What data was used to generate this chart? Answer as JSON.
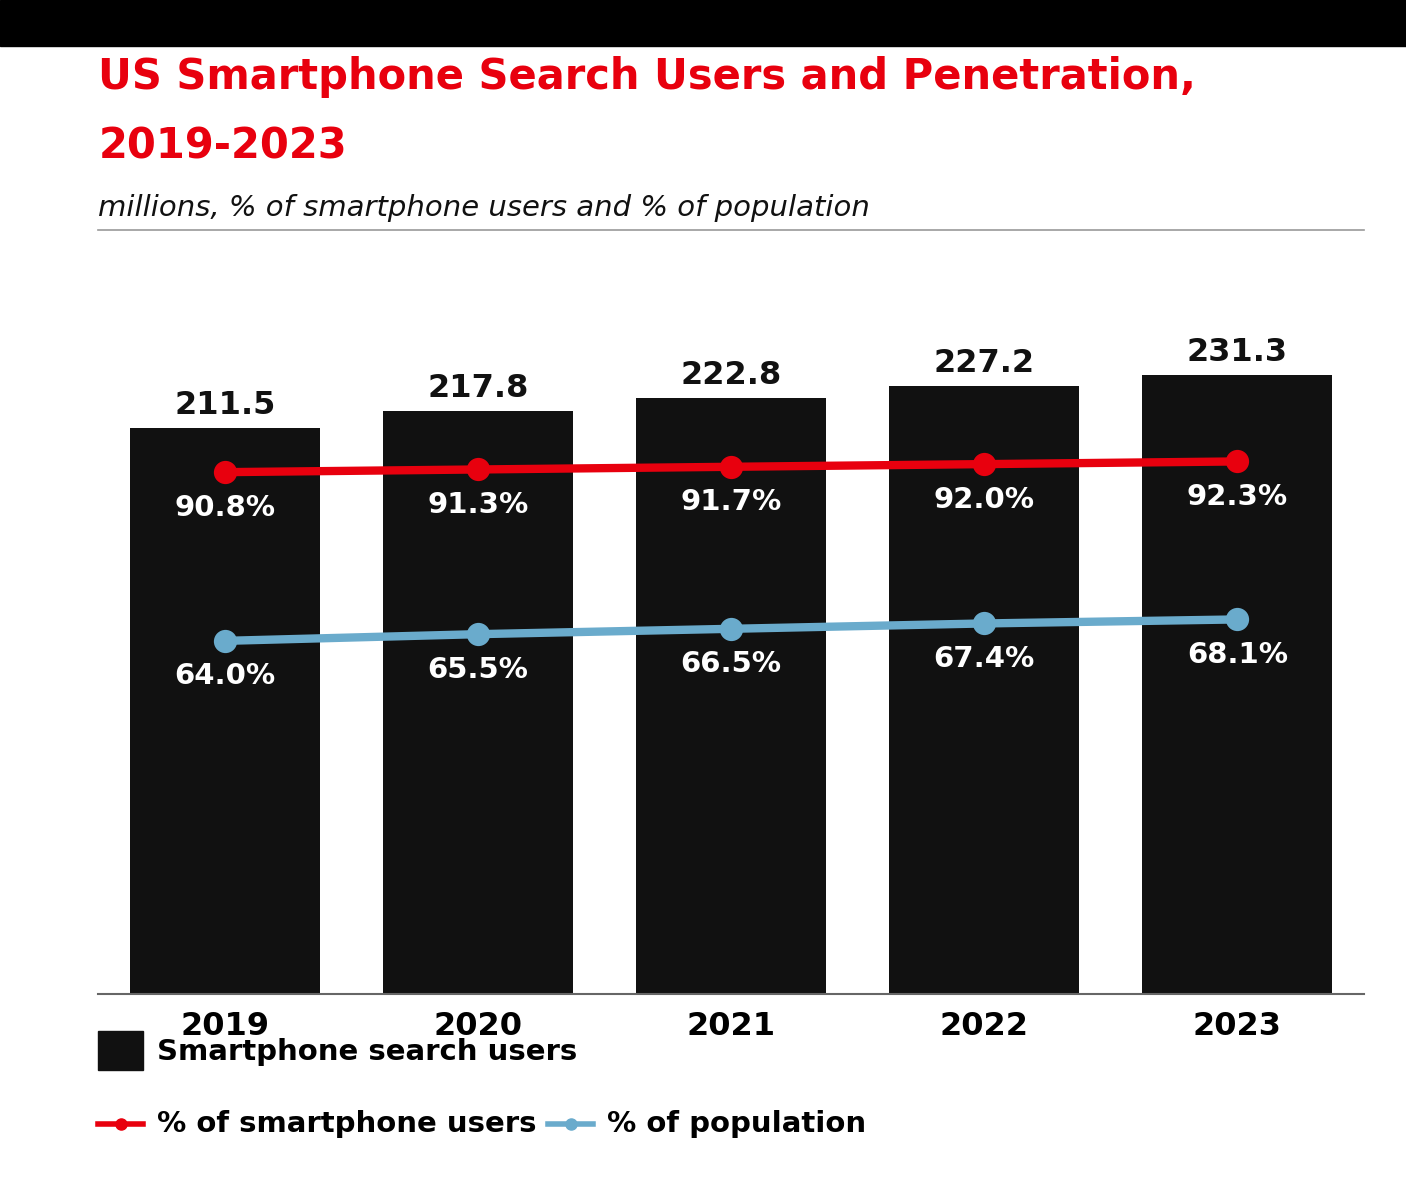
{
  "years": [
    2019,
    2020,
    2021,
    2022,
    2023
  ],
  "bar_values": [
    211.5,
    217.8,
    222.8,
    227.2,
    231.3
  ],
  "pct_smartphone": [
    90.8,
    91.3,
    91.7,
    92.0,
    92.3
  ],
  "pct_population": [
    64.0,
    65.5,
    66.5,
    67.4,
    68.1
  ],
  "bar_color": "#111111",
  "red_line_color": "#e8000e",
  "blue_line_color": "#6aabcc",
  "title_line1": "US Smartphone Search Users and Penetration,",
  "title_line2": "2019-2023",
  "subtitle": "millions, % of smartphone users and % of population",
  "title_color": "#e8000e",
  "subtitle_color": "#111111",
  "bar_label_color": "#111111",
  "white_label_color": "#ffffff",
  "background_color": "#ffffff",
  "ylim": [
    0,
    255
  ],
  "red_y_values": [
    195.0,
    196.0,
    197.0,
    198.0,
    199.0
  ],
  "blue_y_values": [
    132.0,
    134.5,
    136.5,
    138.5,
    140.0
  ],
  "legend_items": [
    {
      "label": "Smartphone search users",
      "color": "#111111",
      "type": "bar"
    },
    {
      "label": "% of smartphone users",
      "color": "#e8000e",
      "type": "line"
    },
    {
      "label": "% of population",
      "color": "#6aabcc",
      "type": "line"
    }
  ]
}
